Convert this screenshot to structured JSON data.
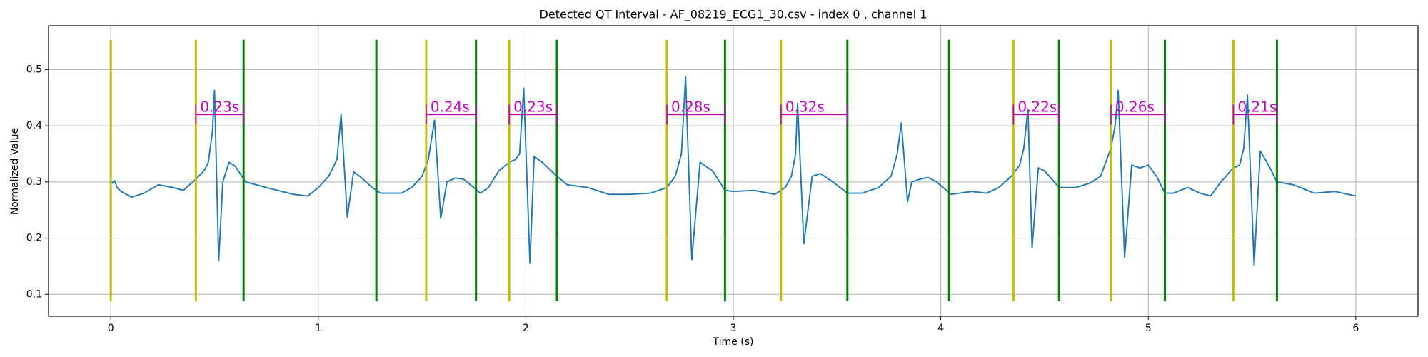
{
  "chart_data": {
    "type": "line",
    "title": "Detected QT Interval - AF_08219_ECG1_30.csv - index 0 , channel 1",
    "x_label": "Time (s)",
    "y_label": "Normalized Value",
    "xlim": [
      -0.3,
      6.3
    ],
    "ylim": [
      0.061,
      0.578
    ],
    "xticks": [
      0,
      1,
      2,
      3,
      4,
      5,
      6
    ],
    "yticks": [
      0.1,
      0.2,
      0.3,
      0.4,
      0.5
    ],
    "grid": true,
    "series": [
      {
        "color": "#1f77b4",
        "x": [
          0,
          0.01,
          0.02,
          0.03,
          0.05,
          0.1,
          0.16,
          0.23,
          0.3,
          0.35,
          0.41,
          0.45,
          0.47,
          0.49,
          0.5,
          0.52,
          0.54,
          0.57,
          0.6,
          0.65,
          0.75,
          0.88,
          0.95,
          1.0,
          1.05,
          1.09,
          1.11,
          1.14,
          1.17,
          1.2,
          1.26,
          1.3,
          1.4,
          1.45,
          1.5,
          1.53,
          1.56,
          1.59,
          1.62,
          1.66,
          1.7,
          1.75,
          1.78,
          1.82,
          1.87,
          1.92,
          1.95,
          1.97,
          1.99,
          2.02,
          2.04,
          2.08,
          2.15,
          2.2,
          2.3,
          2.4,
          2.5,
          2.6,
          2.68,
          2.72,
          2.75,
          2.77,
          2.8,
          2.84,
          2.9,
          2.96,
          3.0,
          3.1,
          3.2,
          3.25,
          3.28,
          3.3,
          3.31,
          3.34,
          3.38,
          3.42,
          3.48,
          3.55,
          3.62,
          3.7,
          3.76,
          3.79,
          3.81,
          3.84,
          3.86,
          3.9,
          3.94,
          3.98,
          4.05,
          4.15,
          4.22,
          4.28,
          4.34,
          4.38,
          4.4,
          4.42,
          4.44,
          4.47,
          4.5,
          4.57,
          4.65,
          4.72,
          4.77,
          4.82,
          4.84,
          4.855,
          4.886,
          4.92,
          4.96,
          5.0,
          5.04,
          5.08,
          5.12,
          5.19,
          5.25,
          5.3,
          5.35,
          5.41,
          5.44,
          5.46,
          5.478,
          5.51,
          5.54,
          5.58,
          5.62,
          5.7,
          5.8,
          5.9,
          6.0
        ],
        "values": [
          0.303,
          0.298,
          0.302,
          0.29,
          0.283,
          0.273,
          0.28,
          0.295,
          0.29,
          0.285,
          0.305,
          0.32,
          0.335,
          0.39,
          0.463,
          0.16,
          0.3,
          0.335,
          0.328,
          0.3,
          0.29,
          0.278,
          0.275,
          0.29,
          0.31,
          0.34,
          0.42,
          0.237,
          0.318,
          0.31,
          0.29,
          0.28,
          0.28,
          0.29,
          0.31,
          0.34,
          0.41,
          0.235,
          0.3,
          0.307,
          0.305,
          0.29,
          0.28,
          0.29,
          0.32,
          0.335,
          0.34,
          0.35,
          0.467,
          0.155,
          0.345,
          0.335,
          0.31,
          0.295,
          0.29,
          0.278,
          0.278,
          0.28,
          0.29,
          0.31,
          0.35,
          0.487,
          0.162,
          0.335,
          0.32,
          0.285,
          0.283,
          0.285,
          0.278,
          0.29,
          0.31,
          0.35,
          0.44,
          0.19,
          0.31,
          0.315,
          0.3,
          0.28,
          0.28,
          0.29,
          0.31,
          0.35,
          0.405,
          0.265,
          0.3,
          0.305,
          0.308,
          0.3,
          0.278,
          0.283,
          0.28,
          0.29,
          0.31,
          0.33,
          0.36,
          0.43,
          0.183,
          0.325,
          0.32,
          0.29,
          0.29,
          0.298,
          0.31,
          0.36,
          0.4,
          0.463,
          0.165,
          0.33,
          0.325,
          0.33,
          0.31,
          0.28,
          0.28,
          0.29,
          0.28,
          0.275,
          0.3,
          0.325,
          0.33,
          0.36,
          0.455,
          0.152,
          0.355,
          0.33,
          0.3,
          0.295,
          0.28,
          0.283,
          0.275
        ]
      }
    ],
    "vline_ylim": [
      0.088,
      0.553
    ],
    "q_onsets": {
      "color": "#bfbf00",
      "x": [
        0,
        0.41,
        1.52,
        1.92,
        2.68,
        3.23,
        4.35,
        4.82,
        5.41
      ]
    },
    "t_ends": {
      "color": "#008000",
      "x": [
        0.64,
        1.28,
        1.76,
        2.15,
        2.96,
        3.55,
        4.04,
        4.57,
        5.08,
        5.62
      ]
    },
    "annotations": {
      "color": "#bf00bf",
      "y": 0.42,
      "x_start": [
        0.41,
        1.52,
        1.92,
        2.68,
        3.23,
        4.35,
        4.82,
        5.41
      ],
      "x_end": [
        0.64,
        1.76,
        2.15,
        2.96,
        3.55,
        4.57,
        5.08,
        5.62
      ],
      "labels": [
        "0.23s",
        "0.24s",
        "0.23s",
        "0.28s",
        "0.32s",
        "0.22s",
        "0.26s",
        "0.21s"
      ]
    }
  }
}
